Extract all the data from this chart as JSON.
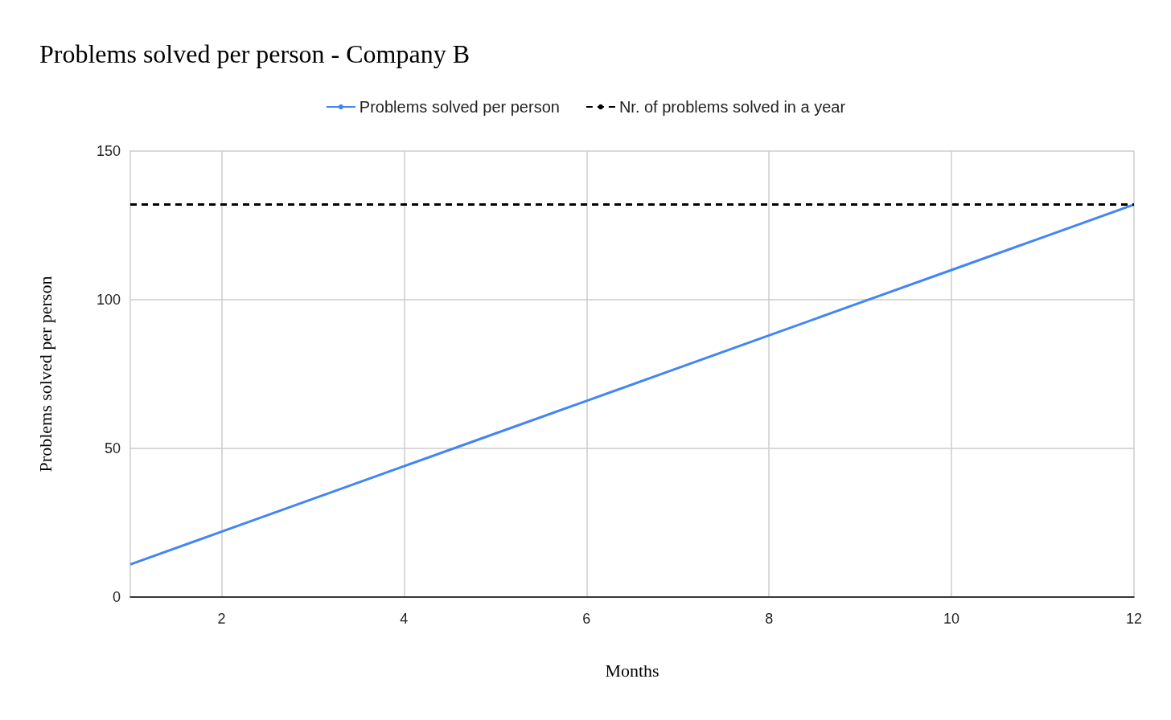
{
  "chart_data": {
    "type": "line",
    "title": "Problems solved per person - Company B",
    "xlabel": "Months",
    "ylabel": "Problems solved per person",
    "x": [
      1,
      2,
      3,
      4,
      5,
      6,
      7,
      8,
      9,
      10,
      11,
      12
    ],
    "series": [
      {
        "name": "Problems solved per person",
        "color": "#4285f4",
        "values": [
          11,
          22,
          33,
          44,
          55,
          66,
          77,
          88,
          99,
          110,
          121,
          132
        ]
      },
      {
        "name": "Nr. of problems solved in a year",
        "color": "#000000",
        "x": [
          1,
          12
        ],
        "values": [
          132,
          132
        ],
        "line_style": "dashed"
      }
    ],
    "xlim": [
      1,
      12
    ],
    "xticks": [
      2,
      4,
      6,
      8,
      10,
      12
    ],
    "ylim": [
      0,
      150
    ],
    "yticks": [
      0,
      50,
      100,
      150
    ],
    "grid": true,
    "legend": "top",
    "marker": "none"
  }
}
